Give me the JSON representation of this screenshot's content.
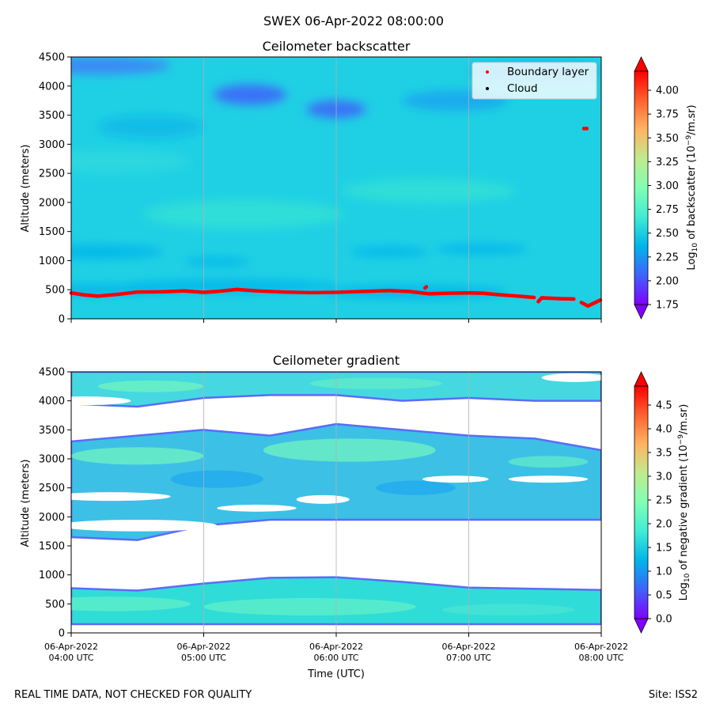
{
  "figure": {
    "suptitle": "SWEX 06-Apr-2022 08:00:00",
    "footer_left": "REAL TIME DATA, NOT CHECKED FOR QUALITY",
    "footer_right": "Site: ISS2",
    "xlabel": "Time (UTC)",
    "x_ticks": [
      {
        "date": "06-Apr-2022",
        "time": "04:00 UTC"
      },
      {
        "date": "06-Apr-2022",
        "time": "05:00 UTC"
      },
      {
        "date": "06-Apr-2022",
        "time": "06:00 UTC"
      },
      {
        "date": "06-Apr-2022",
        "time": "07:00 UTC"
      },
      {
        "date": "06-Apr-2022",
        "time": "08:00 UTC"
      }
    ]
  },
  "colors": {
    "boundary_layer": "#ff0000",
    "cloud": "#000000",
    "grid": "#b0b0b0",
    "colormap": [
      "#8000ff",
      "#4062fa",
      "#00b5eb",
      "#40ecd4",
      "#80ffb4",
      "#c0eb8d",
      "#ffb462",
      "#ff6230",
      "#ff0000"
    ]
  },
  "chart_data": [
    {
      "type": "heatmap",
      "title": "Ceilometer backscatter",
      "xlabel": "",
      "ylabel": "Altitude (meters)",
      "x_range_hours": [
        4,
        8
      ],
      "ylim": [
        0,
        4500
      ],
      "y_ticks": [
        0,
        500,
        1000,
        1500,
        2000,
        2500,
        3000,
        3500,
        4000,
        4500
      ],
      "grid": "vertical",
      "colorbar": {
        "label": "Log10 of backscatter (10^-9/m.sr)",
        "label_base": "Log",
        "label_sub": "10",
        "label_mid": " of backscatter (10",
        "label_sup": "−9",
        "label_end": "/m.sr)",
        "range": [
          1.75,
          4.2
        ],
        "ticks": [
          "1.75",
          "2.00",
          "2.25",
          "2.50",
          "2.75",
          "3.00",
          "3.25",
          "3.50",
          "3.75",
          "4.00"
        ]
      },
      "legend": {
        "placement": "upper-right",
        "entries": [
          {
            "label": "Boundary layer",
            "color": "#ff0000"
          },
          {
            "label": "Cloud",
            "color": "#000000"
          }
        ]
      },
      "series": [
        {
          "name": "Boundary layer",
          "x": [
            4.0,
            4.1,
            4.2,
            4.35,
            4.5,
            4.7,
            4.85,
            5.0,
            5.1,
            5.25,
            5.4,
            5.6,
            5.8,
            6.0,
            6.2,
            6.4,
            6.55,
            6.7,
            6.85,
            7.0,
            7.1,
            7.25,
            7.4,
            7.5
          ],
          "y": [
            445,
            410,
            390,
            420,
            460,
            465,
            480,
            455,
            470,
            505,
            480,
            460,
            450,
            455,
            470,
            485,
            470,
            430,
            440,
            445,
            440,
            410,
            385,
            365
          ]
        },
        {
          "name": "Boundary layer (low segment)",
          "x": [
            7.5,
            7.55,
            7.6,
            7.7,
            7.8,
            7.9,
            8.0
          ],
          "y": [
            230,
            360,
            355,
            345,
            340,
            220,
            330
          ]
        }
      ],
      "features": {
        "bl_outlier_x": 6.67,
        "bl_outlier_y": 530,
        "high_point_x": 7.87,
        "high_point_y": 3270
      }
    },
    {
      "type": "heatmap",
      "title": "Ceilometer gradient",
      "xlabel": "Time (UTC)",
      "ylabel": "Altitude (meters)",
      "x_range_hours": [
        4,
        8
      ],
      "ylim": [
        0,
        4500
      ],
      "y_ticks": [
        0,
        500,
        1000,
        1500,
        2000,
        2500,
        3000,
        3500,
        4000,
        4500
      ],
      "grid": "vertical",
      "colorbar": {
        "label": "Log10 of negative gradient (10^-9/m.sr)",
        "label_base": "Log",
        "label_sub": "10",
        "label_mid": " of negative gradient (10",
        "label_sup": "−9",
        "label_end": "/m.sr)",
        "range": [
          0,
          4.9
        ],
        "ticks": [
          "0.0",
          "0.5",
          "1.0",
          "1.5",
          "2.0",
          "2.5",
          "3.0",
          "3.5",
          "4.0",
          "4.5"
        ]
      },
      "bands": [
        {
          "name": "lower layer",
          "x": [
            4,
            4.5,
            5,
            5.5,
            6,
            6.5,
            7,
            7.5,
            8
          ],
          "bottom": [
            150,
            150,
            150,
            150,
            150,
            150,
            150,
            150,
            150
          ],
          "top": [
            770,
            730,
            850,
            950,
            960,
            880,
            780,
            760,
            740
          ]
        },
        {
          "name": "middle layer",
          "x": [
            4,
            4.5,
            5,
            5.5,
            6,
            6.5,
            7,
            7.5,
            8
          ],
          "bottom": [
            1650,
            1600,
            1850,
            1950,
            1950,
            1950,
            1950,
            1950,
            1950
          ],
          "top": [
            3300,
            3400,
            3500,
            3400,
            3600,
            3500,
            3400,
            3350,
            3150
          ]
        },
        {
          "name": "upper layer",
          "x": [
            4,
            4.5,
            5,
            5.5,
            6,
            6.5,
            7,
            7.5,
            8
          ],
          "bottom": [
            3950,
            3900,
            4050,
            4100,
            4100,
            4000,
            4050,
            4000,
            4000
          ],
          "top": [
            4500,
            4500,
            4500,
            4500,
            4500,
            4500,
            4500,
            4500,
            4500
          ]
        }
      ]
    }
  ]
}
